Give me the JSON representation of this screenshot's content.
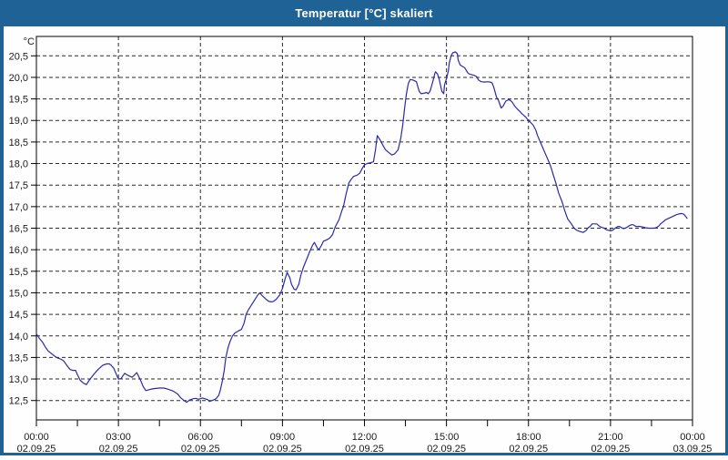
{
  "window": {
    "title": "Temperatur [°C] skaliert"
  },
  "colors": {
    "titlebar": "#1E6296",
    "frame": "#1E6296",
    "title_text": "#FFFFFF",
    "background": "#FDFEFD",
    "plot_background": "#FDFEFD",
    "line": "#2A2AAD",
    "grid": "#2B2B2B",
    "axis": "#000000",
    "text": "#1A1A1A"
  },
  "chart_data": {
    "type": "line",
    "title": "Temperatur [°C] skaliert",
    "ylabel": "°C",
    "y_unit_label": "°C",
    "ylim": [
      12.05,
      20.95
    ],
    "xlim_hours": [
      0,
      24
    ],
    "grid": "dashed",
    "legend": "none",
    "y_tick_values": [
      20.5,
      20.0,
      19.5,
      19.0,
      18.5,
      18.0,
      17.5,
      17.0,
      16.5,
      16.0,
      15.5,
      15.0,
      14.5,
      14.0,
      13.5,
      13.0,
      12.5
    ],
    "y_tick_labels": [
      "20,5",
      "20,0",
      "19,5",
      "19,0",
      "18,5",
      "18,0",
      "17,5",
      "17,0",
      "16,5",
      "16,0",
      "15,5",
      "15,0",
      "14,5",
      "14,0",
      "13,5",
      "13,0",
      "12,5"
    ],
    "x_tick_hours": [
      0,
      3,
      6,
      9,
      12,
      15,
      18,
      21,
      24
    ],
    "x_tick_time_labels": [
      "00:00",
      "03:00",
      "06:00",
      "09:00",
      "12:00",
      "15:00",
      "18:00",
      "21:00",
      "00:00"
    ],
    "x_tick_date_labels": [
      "02.09.25",
      "02.09.25",
      "02.09.25",
      "02.09.25",
      "02.09.25",
      "02.09.25",
      "02.09.25",
      "02.09.25",
      "03.09.25"
    ],
    "x_minor_interval_hours": 1.5,
    "series": [
      {
        "name": "Temperatur",
        "points": [
          [
            0,
            14.05
          ],
          [
            0.1,
            13.95
          ],
          [
            0.23,
            13.85
          ],
          [
            0.33,
            13.74
          ],
          [
            0.43,
            13.65
          ],
          [
            0.57,
            13.58
          ],
          [
            0.67,
            13.53
          ],
          [
            0.77,
            13.49
          ],
          [
            0.9,
            13.46
          ],
          [
            1,
            13.42
          ],
          [
            1.1,
            13.33
          ],
          [
            1.23,
            13.22
          ],
          [
            1.33,
            13.2
          ],
          [
            1.43,
            13.2
          ],
          [
            1.5,
            13.1
          ],
          [
            1.6,
            12.97
          ],
          [
            1.73,
            12.9
          ],
          [
            1.83,
            12.87
          ],
          [
            1.93,
            12.97
          ],
          [
            2.1,
            13.11
          ],
          [
            2.27,
            13.23
          ],
          [
            2.43,
            13.32
          ],
          [
            2.57,
            13.35
          ],
          [
            2.67,
            13.35
          ],
          [
            2.73,
            13.32
          ],
          [
            2.83,
            13.25
          ],
          [
            2.93,
            13.1
          ],
          [
            3,
            13
          ],
          [
            3.1,
            13.01
          ],
          [
            3.17,
            13.08
          ],
          [
            3.23,
            13.13
          ],
          [
            3.33,
            13.09
          ],
          [
            3.43,
            13.06
          ],
          [
            3.5,
            13.04
          ],
          [
            3.57,
            13.08
          ],
          [
            3.67,
            13.15
          ],
          [
            3.77,
            13.02
          ],
          [
            3.83,
            12.94
          ],
          [
            3.9,
            12.83
          ],
          [
            4,
            12.73
          ],
          [
            4.17,
            12.76
          ],
          [
            4.33,
            12.78
          ],
          [
            4.5,
            12.79
          ],
          [
            4.67,
            12.79
          ],
          [
            4.83,
            12.76
          ],
          [
            5,
            12.72
          ],
          [
            5.17,
            12.65
          ],
          [
            5.27,
            12.57
          ],
          [
            5.4,
            12.5
          ],
          [
            5.5,
            12.46
          ],
          [
            5.6,
            12.51
          ],
          [
            5.73,
            12.54
          ],
          [
            5.83,
            12.55
          ],
          [
            5.93,
            12.53
          ],
          [
            6.07,
            12.56
          ],
          [
            6.17,
            12.54
          ],
          [
            6.27,
            12.52
          ],
          [
            6.33,
            12.48
          ],
          [
            6.43,
            12.5
          ],
          [
            6.57,
            12.54
          ],
          [
            6.67,
            12.62
          ],
          [
            6.73,
            12.75
          ],
          [
            6.8,
            12.95
          ],
          [
            6.87,
            13.2
          ],
          [
            6.93,
            13.5
          ],
          [
            7,
            13.7
          ],
          [
            7.07,
            13.85
          ],
          [
            7.17,
            14
          ],
          [
            7.27,
            14.07
          ],
          [
            7.4,
            14.12
          ],
          [
            7.5,
            14.15
          ],
          [
            7.6,
            14.3
          ],
          [
            7.67,
            14.5
          ],
          [
            7.77,
            14.62
          ],
          [
            7.9,
            14.75
          ],
          [
            8,
            14.85
          ],
          [
            8.1,
            14.95
          ],
          [
            8.17,
            15
          ],
          [
            8.27,
            14.93
          ],
          [
            8.4,
            14.85
          ],
          [
            8.5,
            14.8
          ],
          [
            8.6,
            14.79
          ],
          [
            8.67,
            14.8
          ],
          [
            8.77,
            14.85
          ],
          [
            8.9,
            14.95
          ],
          [
            9,
            15.1
          ],
          [
            9.1,
            15.33
          ],
          [
            9.17,
            15.47
          ],
          [
            9.27,
            15.35
          ],
          [
            9.33,
            15.2
          ],
          [
            9.43,
            15.08
          ],
          [
            9.5,
            15.07
          ],
          [
            9.6,
            15.2
          ],
          [
            9.67,
            15.4
          ],
          [
            9.77,
            15.6
          ],
          [
            9.9,
            15.8
          ],
          [
            10,
            15.96
          ],
          [
            10.1,
            16.1
          ],
          [
            10.17,
            16.17
          ],
          [
            10.27,
            16.05
          ],
          [
            10.33,
            16
          ],
          [
            10.43,
            16.1
          ],
          [
            10.5,
            16.2
          ],
          [
            10.6,
            16.22
          ],
          [
            10.73,
            16.27
          ],
          [
            10.83,
            16.35
          ],
          [
            10.93,
            16.53
          ],
          [
            11.07,
            16.7
          ],
          [
            11.17,
            16.9
          ],
          [
            11.23,
            17
          ],
          [
            11.33,
            17.3
          ],
          [
            11.43,
            17.55
          ],
          [
            11.5,
            17.62
          ],
          [
            11.6,
            17.7
          ],
          [
            11.73,
            17.73
          ],
          [
            11.83,
            17.78
          ],
          [
            11.93,
            17.9
          ],
          [
            12,
            17.97
          ],
          [
            12.1,
            18
          ],
          [
            12.23,
            18.02
          ],
          [
            12.33,
            18.04
          ],
          [
            12.4,
            18.3
          ],
          [
            12.47,
            18.65
          ],
          [
            12.57,
            18.55
          ],
          [
            12.67,
            18.43
          ],
          [
            12.77,
            18.32
          ],
          [
            12.9,
            18.25
          ],
          [
            13,
            18.2
          ],
          [
            13.1,
            18.22
          ],
          [
            13.23,
            18.32
          ],
          [
            13.33,
            18.6
          ],
          [
            13.4,
            18.9
          ],
          [
            13.47,
            19.3
          ],
          [
            13.53,
            19.6
          ],
          [
            13.6,
            19.85
          ],
          [
            13.67,
            19.95
          ],
          [
            13.77,
            19.94
          ],
          [
            13.9,
            19.9
          ],
          [
            14,
            19.68
          ],
          [
            14.07,
            19.62
          ],
          [
            14.17,
            19.63
          ],
          [
            14.27,
            19.65
          ],
          [
            14.33,
            19.62
          ],
          [
            14.4,
            19.68
          ],
          [
            14.5,
            19.9
          ],
          [
            14.57,
            20.08
          ],
          [
            14.6,
            20.13
          ],
          [
            14.67,
            20.08
          ],
          [
            14.73,
            19.97
          ],
          [
            14.83,
            19.68
          ],
          [
            14.9,
            19.62
          ],
          [
            14.93,
            19.83
          ],
          [
            15,
            19.97
          ],
          [
            15.07,
            20.15
          ],
          [
            15.1,
            20.32
          ],
          [
            15.17,
            20.5
          ],
          [
            15.23,
            20.57
          ],
          [
            15.33,
            20.59
          ],
          [
            15.4,
            20.55
          ],
          [
            15.43,
            20.4
          ],
          [
            15.5,
            20.29
          ],
          [
            15.57,
            20.26
          ],
          [
            15.67,
            20.22
          ],
          [
            15.77,
            20.11
          ],
          [
            15.83,
            20.08
          ],
          [
            15.93,
            20.06
          ],
          [
            16,
            20.05
          ],
          [
            16.1,
            20.02
          ],
          [
            16.17,
            19.94
          ],
          [
            16.27,
            19.9
          ],
          [
            16.4,
            19.89
          ],
          [
            16.5,
            19.9
          ],
          [
            16.6,
            19.89
          ],
          [
            16.67,
            19.87
          ],
          [
            16.73,
            19.77
          ],
          [
            16.83,
            19.54
          ],
          [
            16.9,
            19.47
          ],
          [
            17,
            19.29
          ],
          [
            17.07,
            19.33
          ],
          [
            17.17,
            19.45
          ],
          [
            17.27,
            19.48
          ],
          [
            17.33,
            19.47
          ],
          [
            17.4,
            19.43
          ],
          [
            17.5,
            19.33
          ],
          [
            17.6,
            19.26
          ],
          [
            17.67,
            19.22
          ],
          [
            17.77,
            19.15
          ],
          [
            17.9,
            19.08
          ],
          [
            18,
            19
          ],
          [
            18.1,
            18.94
          ],
          [
            18.17,
            18.89
          ],
          [
            18.27,
            18.77
          ],
          [
            18.33,
            18.65
          ],
          [
            18.43,
            18.5
          ],
          [
            18.5,
            18.4
          ],
          [
            18.6,
            18.25
          ],
          [
            18.67,
            18.15
          ],
          [
            18.77,
            18
          ],
          [
            18.83,
            17.9
          ],
          [
            18.9,
            17.75
          ],
          [
            19,
            17.55
          ],
          [
            19.1,
            17.32
          ],
          [
            19.23,
            17.11
          ],
          [
            19.33,
            16.9
          ],
          [
            19.43,
            16.72
          ],
          [
            19.57,
            16.6
          ],
          [
            19.67,
            16.5
          ],
          [
            19.77,
            16.45
          ],
          [
            19.9,
            16.42
          ],
          [
            20,
            16.4
          ],
          [
            20.1,
            16.44
          ],
          [
            20.17,
            16.5
          ],
          [
            20.27,
            16.55
          ],
          [
            20.33,
            16.6
          ],
          [
            20.5,
            16.6
          ],
          [
            20.6,
            16.54
          ],
          [
            20.67,
            16.52
          ],
          [
            20.77,
            16.5
          ],
          [
            20.83,
            16.47
          ],
          [
            20.93,
            16.45
          ],
          [
            21,
            16.44
          ],
          [
            21.07,
            16.45
          ],
          [
            21.17,
            16.5
          ],
          [
            21.27,
            16.54
          ],
          [
            21.33,
            16.54
          ],
          [
            21.43,
            16.5
          ],
          [
            21.5,
            16.49
          ],
          [
            21.6,
            16.52
          ],
          [
            21.67,
            16.55
          ],
          [
            21.77,
            16.58
          ],
          [
            21.83,
            16.58
          ],
          [
            21.93,
            16.54
          ],
          [
            22.07,
            16.54
          ],
          [
            22.17,
            16.53
          ],
          [
            22.27,
            16.51
          ],
          [
            22.4,
            16.5
          ],
          [
            22.5,
            16.5
          ],
          [
            22.6,
            16.5
          ],
          [
            22.67,
            16.51
          ],
          [
            22.77,
            16.55
          ],
          [
            22.83,
            16.6
          ],
          [
            22.93,
            16.65
          ],
          [
            23,
            16.69
          ],
          [
            23.1,
            16.72
          ],
          [
            23.17,
            16.74
          ],
          [
            23.27,
            16.77
          ],
          [
            23.33,
            16.79
          ],
          [
            23.43,
            16.82
          ],
          [
            23.5,
            16.83
          ],
          [
            23.6,
            16.84
          ],
          [
            23.67,
            16.83
          ],
          [
            23.73,
            16.79
          ],
          [
            23.8,
            16.73
          ]
        ]
      }
    ]
  }
}
